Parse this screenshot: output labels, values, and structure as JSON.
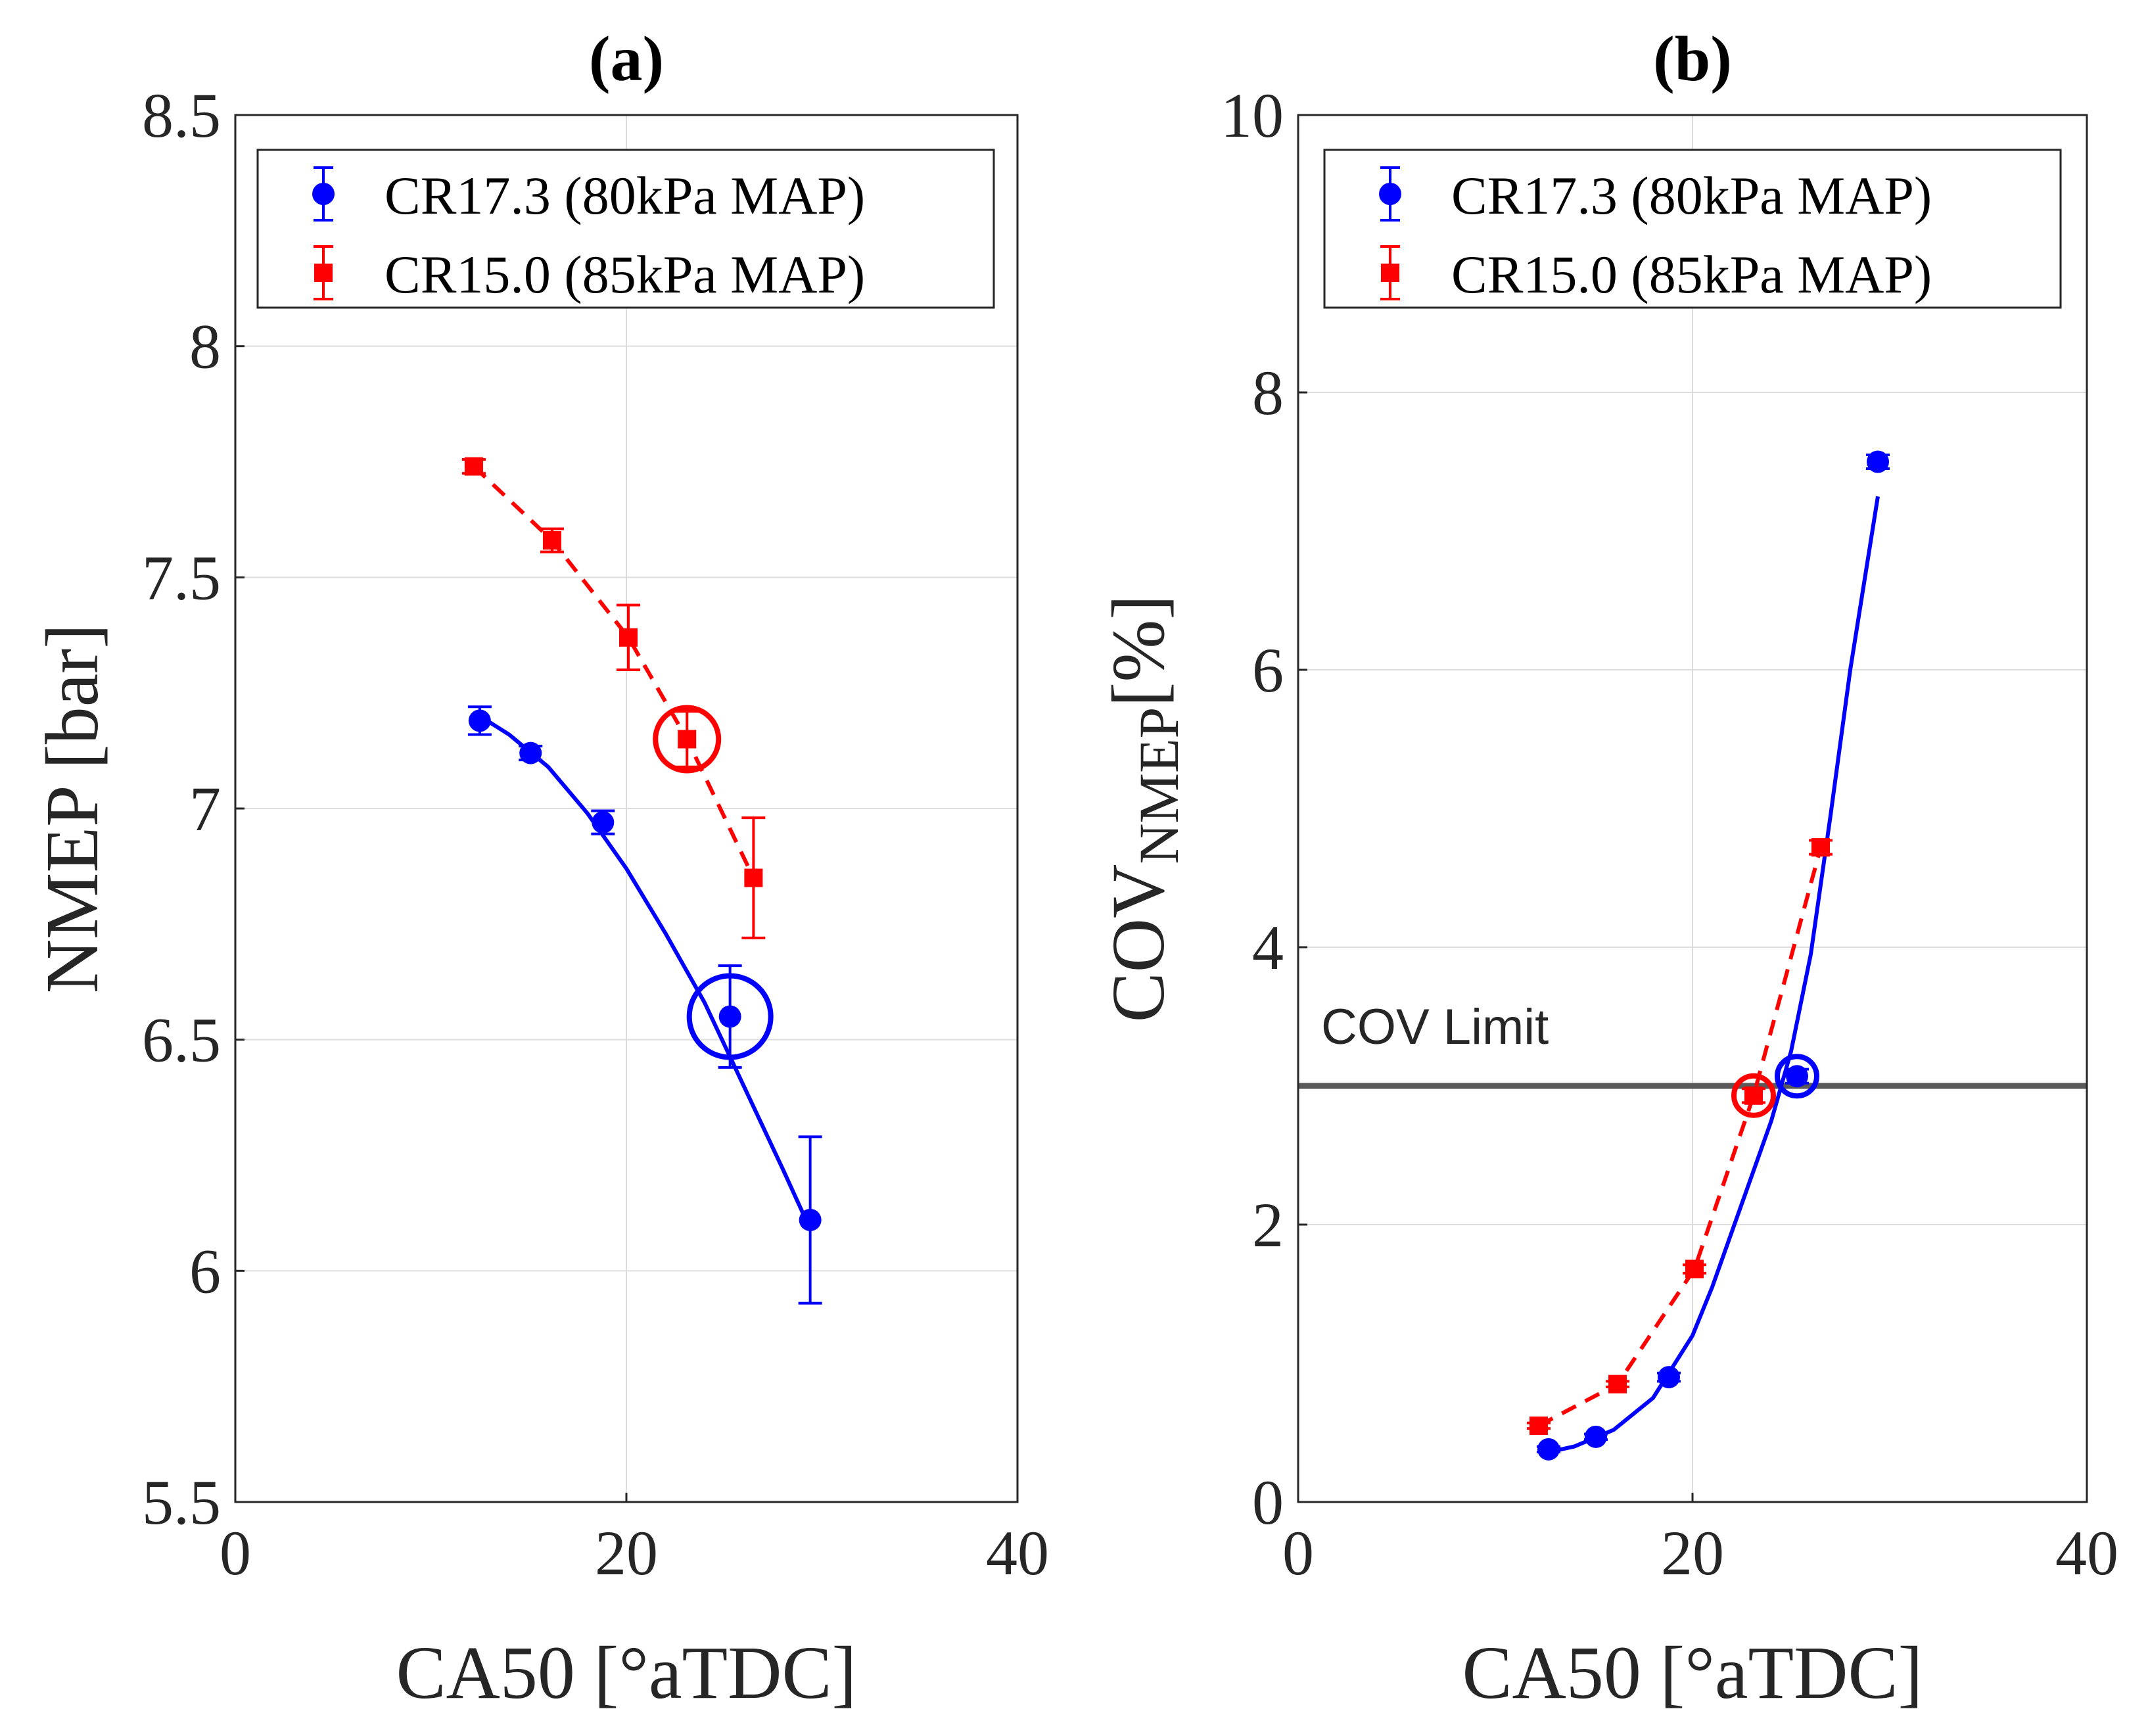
{
  "colors": {
    "series1": "#0000ff",
    "series2": "#ff0000",
    "grid": "#dddddd",
    "axis": "#262626",
    "limit_line": "#595959"
  },
  "chart_data": [
    {
      "type": "scatter",
      "title": "(a)",
      "xlabel": "CA50 [°aTDC]",
      "ylabel": "NMEP [bar]",
      "xlim": [
        0,
        40
      ],
      "ylim": [
        5.5,
        8.5
      ],
      "xticks": [
        0,
        20,
        40
      ],
      "xtick_labels": [
        "0",
        "20",
        "40"
      ],
      "yticks": [
        5.5,
        6,
        6.5,
        7,
        7.5,
        8,
        8.5
      ],
      "ytick_labels": [
        "5.5",
        "6",
        "6.5",
        "7",
        "7.5",
        "8",
        "8.5"
      ],
      "grid": true,
      "legend": "top",
      "series": [
        {
          "name": "CR17.3 (80kPa MAP)",
          "marker": "circle",
          "line": "solid-fit",
          "x": [
            12.5,
            15.1,
            18.8,
            25.3,
            29.4
          ],
          "y": [
            7.19,
            7.12,
            6.97,
            6.55,
            6.11
          ],
          "err": [
            0.03,
            0.015,
            0.025,
            0.11,
            0.18
          ],
          "fit_x": [
            12.5,
            14,
            16,
            18,
            20,
            22,
            24,
            26,
            28,
            29.4
          ],
          "fit_y": [
            7.2,
            7.16,
            7.09,
            6.99,
            6.87,
            6.73,
            6.58,
            6.4,
            6.22,
            6.09
          ],
          "highlight": {
            "x": 25.3,
            "y": 6.55
          }
        },
        {
          "name": "CR15.0 (85kPa MAP)",
          "marker": "square",
          "line": "dashed",
          "x": [
            12.2,
            16.2,
            20.1,
            23.1,
            26.5
          ],
          "y": [
            7.74,
            7.58,
            7.37,
            7.15,
            6.85
          ],
          "err": [
            0.015,
            0.025,
            0.07,
            0.06,
            0.13
          ],
          "highlight": {
            "x": 23.1,
            "y": 7.15
          }
        }
      ]
    },
    {
      "type": "scatter",
      "title": "(b)",
      "xlabel": "CA50 [°aTDC]",
      "ylabel_main": "COV",
      "ylabel_sub": "NMEP",
      "ylabel_unit": "[%]",
      "xlim": [
        0,
        40
      ],
      "ylim": [
        0,
        10
      ],
      "xticks": [
        0,
        20,
        40
      ],
      "xtick_labels": [
        "0",
        "20",
        "40"
      ],
      "yticks": [
        0,
        2,
        4,
        6,
        8,
        10
      ],
      "ytick_labels": [
        "0",
        "2",
        "4",
        "6",
        "8",
        "10"
      ],
      "grid": true,
      "legend": "top",
      "annotation": {
        "text": "COV Limit",
        "y": 3.0
      },
      "series": [
        {
          "name": "CR17.3 (80kPa MAP)",
          "marker": "circle",
          "line": "solid-fit",
          "x": [
            12.7,
            15.1,
            18.8,
            25.3,
            29.4
          ],
          "y": [
            0.38,
            0.47,
            0.9,
            3.07,
            7.5
          ],
          "err": [
            0.02,
            0.02,
            0.03,
            0.05,
            0.05
          ],
          "fit_x": [
            12.7,
            14,
            16,
            18,
            20,
            21,
            22,
            23,
            24,
            25,
            26,
            27,
            28,
            29.4
          ],
          "fit_y": [
            0.36,
            0.4,
            0.52,
            0.75,
            1.2,
            1.55,
            1.95,
            2.35,
            2.75,
            3.25,
            3.95,
            4.95,
            6.0,
            7.25
          ],
          "highlight": {
            "x": 25.3,
            "y": 3.07
          }
        },
        {
          "name": "CR15.0 (85kPa MAP)",
          "marker": "square",
          "line": "dashed",
          "x": [
            12.2,
            16.2,
            20.1,
            23.1,
            26.5
          ],
          "y": [
            0.55,
            0.85,
            1.68,
            2.93,
            4.72
          ],
          "err": [
            0.02,
            0.02,
            0.03,
            0.05,
            0.05
          ],
          "highlight": {
            "x": 23.1,
            "y": 2.93
          }
        }
      ]
    }
  ]
}
